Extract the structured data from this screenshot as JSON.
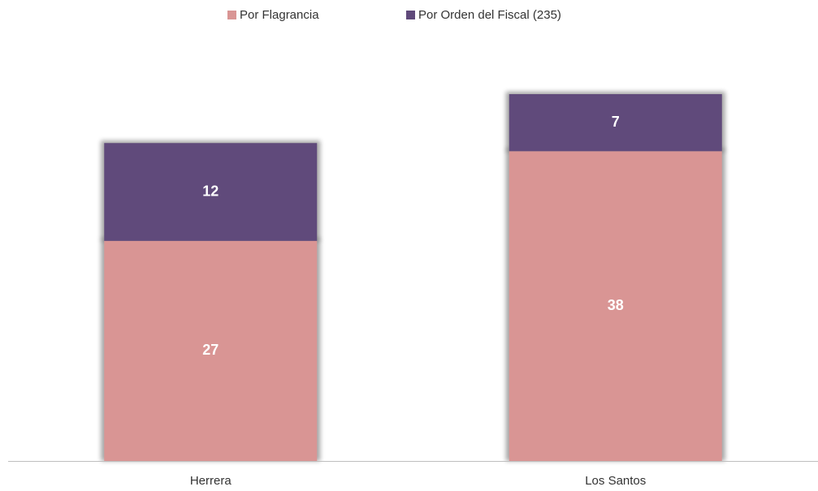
{
  "chart_data": {
    "type": "bar",
    "stacked": true,
    "categories": [
      "Herrera",
      "Los Santos"
    ],
    "series": [
      {
        "name": "Por Flagrancia",
        "color": "#d99594",
        "values": [
          27,
          38
        ]
      },
      {
        "name": "Por Orden del Fiscal (235)",
        "color": "#604a7b",
        "values": [
          12,
          7
        ]
      }
    ],
    "legend": "top",
    "grid": false
  }
}
